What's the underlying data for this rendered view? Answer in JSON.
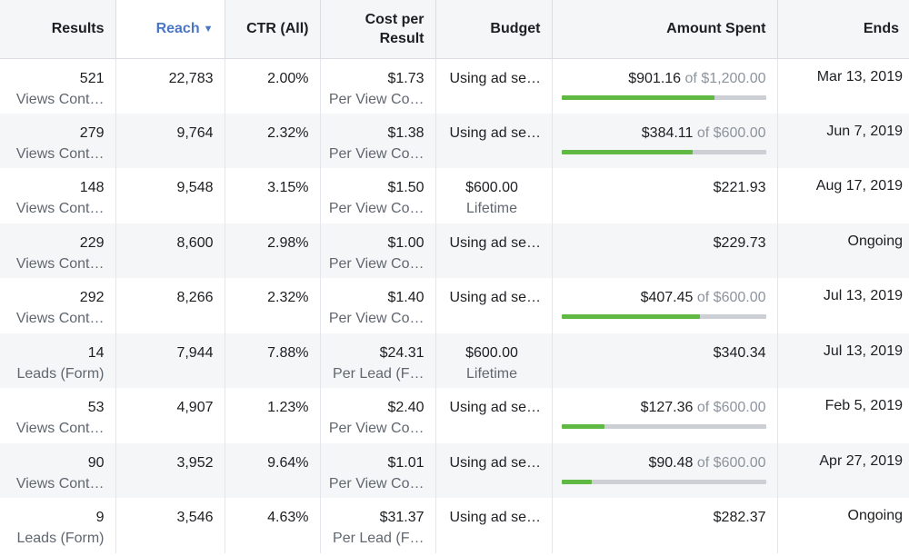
{
  "headers": {
    "results": "Results",
    "reach": "Reach",
    "ctr": "CTR (All)",
    "cost_line1": "Cost per",
    "cost_line2": "Result",
    "budget": "Budget",
    "amount_spent": "Amount Spent",
    "ends": "Ends"
  },
  "colors": {
    "accent": "#4a76c7",
    "progress": "#5fb943",
    "track": "#ccd0d5"
  },
  "rows": [
    {
      "results": "521",
      "result_type": "Views Cont…",
      "reach": "22,783",
      "ctr": "2.00%",
      "cost": "$1.73",
      "cost_type": "Per View Co…",
      "budget": "Using ad se…",
      "budget_sub": "",
      "spent": "$901.16",
      "of_label": "of $1,200.00",
      "progress": 0.751,
      "ends": "Mar 13, 2019"
    },
    {
      "results": "279",
      "result_type": "Views Cont…",
      "reach": "9,764",
      "ctr": "2.32%",
      "cost": "$1.38",
      "cost_type": "Per View Co…",
      "budget": "Using ad se…",
      "budget_sub": "",
      "spent": "$384.11",
      "of_label": "of $600.00",
      "progress": 0.64,
      "ends": "Jun 7, 2019"
    },
    {
      "results": "148",
      "result_type": "Views Cont…",
      "reach": "9,548",
      "ctr": "3.15%",
      "cost": "$1.50",
      "cost_type": "Per View Co…",
      "budget": "$600.00",
      "budget_sub": "Lifetime",
      "spent": "$221.93",
      "of_label": "",
      "progress": null,
      "ends": "Aug 17, 2019"
    },
    {
      "results": "229",
      "result_type": "Views Cont…",
      "reach": "8,600",
      "ctr": "2.98%",
      "cost": "$1.00",
      "cost_type": "Per View Co…",
      "budget": "Using ad se…",
      "budget_sub": "",
      "spent": "$229.73",
      "of_label": "",
      "progress": null,
      "ends": "Ongoing"
    },
    {
      "results": "292",
      "result_type": "Views Cont…",
      "reach": "8,266",
      "ctr": "2.32%",
      "cost": "$1.40",
      "cost_type": "Per View Co…",
      "budget": "Using ad se…",
      "budget_sub": "",
      "spent": "$407.45",
      "of_label": "of $600.00",
      "progress": 0.679,
      "ends": "Jul 13, 2019"
    },
    {
      "results": "14",
      "result_type": "Leads (Form)",
      "reach": "7,944",
      "ctr": "7.88%",
      "cost": "$24.31",
      "cost_type": "Per Lead (F…",
      "budget": "$600.00",
      "budget_sub": "Lifetime",
      "spent": "$340.34",
      "of_label": "",
      "progress": null,
      "ends": "Jul 13, 2019"
    },
    {
      "results": "53",
      "result_type": "Views Cont…",
      "reach": "4,907",
      "ctr": "1.23%",
      "cost": "$2.40",
      "cost_type": "Per View Co…",
      "budget": "Using ad se…",
      "budget_sub": "",
      "spent": "$127.36",
      "of_label": "of $600.00",
      "progress": 0.212,
      "ends": "Feb 5, 2019"
    },
    {
      "results": "90",
      "result_type": "Views Cont…",
      "reach": "3,952",
      "ctr": "9.64%",
      "cost": "$1.01",
      "cost_type": "Per View Co…",
      "budget": "Using ad se…",
      "budget_sub": "",
      "spent": "$90.48",
      "of_label": "of $600.00",
      "progress": 0.151,
      "ends": "Apr 27, 2019"
    },
    {
      "results": "9",
      "result_type": "Leads (Form)",
      "reach": "3,546",
      "ctr": "4.63%",
      "cost": "$31.37",
      "cost_type": "Per Lead (F…",
      "budget": "Using ad se…",
      "budget_sub": "",
      "spent": "$282.37",
      "of_label": "",
      "progress": null,
      "ends": "Ongoing"
    }
  ]
}
